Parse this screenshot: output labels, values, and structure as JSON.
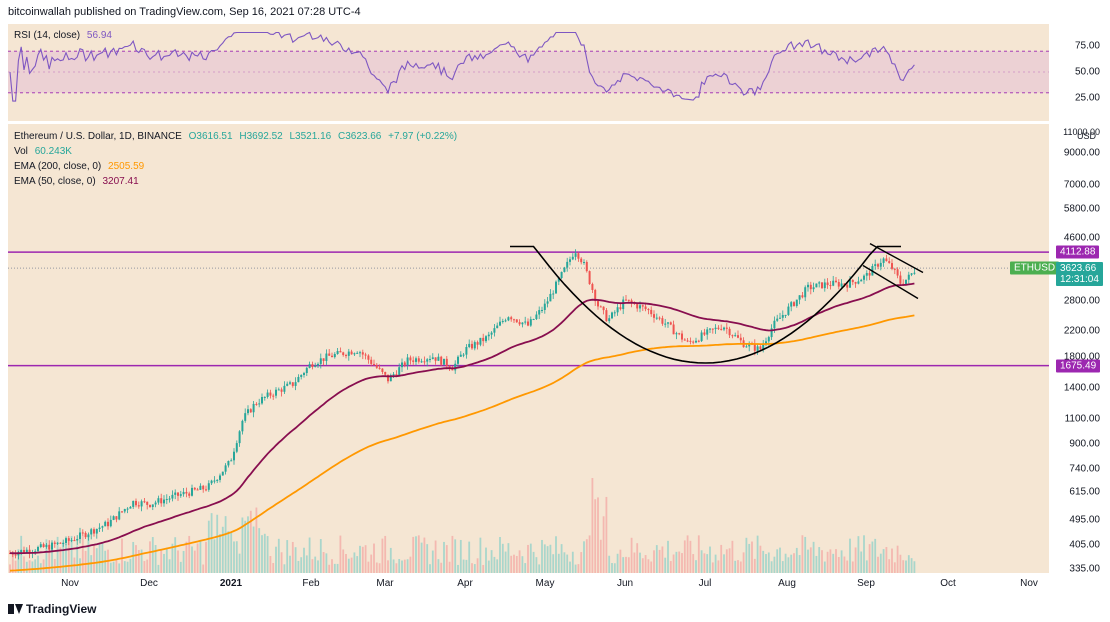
{
  "header": {
    "text": "bitcoinwallah published on TradingView.com, Sep 16, 2021 07:28 UTC-4"
  },
  "rsi": {
    "label": "RSI (14, close)",
    "value": "56.94",
    "ticks": [
      "75.00",
      "50.00",
      "25.00"
    ],
    "tick_values": [
      75,
      50,
      25
    ],
    "band": [
      30,
      70
    ]
  },
  "main": {
    "title": "Ethereum / U.S. Dollar, 1D, BINANCE",
    "ohlc": {
      "o": "O3616.51",
      "h": "H3692.52",
      "l": "L3521.16",
      "c": "C3623.66",
      "chg": "+7.97 (+0.22%)"
    },
    "vol": {
      "label": "Vol",
      "value": "60.243K"
    },
    "ema200": {
      "label": "EMA (200, close, 0)",
      "value": "2505.59"
    },
    "ema50": {
      "label": "EMA (50, close, 0)",
      "value": "3207.41"
    },
    "axis_unit": "USD",
    "axis_top": "11000.00",
    "price_ticks": [
      "9000.00",
      "7000.00",
      "5800.00",
      "4600.00",
      "3600.00",
      "2800.00",
      "2200.00",
      "1800.00",
      "1400.00",
      "1100.00",
      "900.00",
      "740.00",
      "615.00",
      "495.00",
      "405.00",
      "335.00"
    ],
    "price_tick_values": [
      9000,
      7000,
      5800,
      4600,
      3600,
      2800,
      2200,
      1800,
      1400,
      1100,
      900,
      740,
      615,
      495,
      405,
      335
    ],
    "levels": [
      {
        "value": 4112.88,
        "label": "4112.88"
      },
      {
        "value": 1675.49,
        "label": "1675.49"
      }
    ],
    "last_tag": {
      "symbol": "ETHUSD",
      "price": "3623.66",
      "countdown": "12:31:04"
    }
  },
  "xaxis": {
    "labels": [
      "Nov",
      "Dec",
      "2021",
      "Feb",
      "Mar",
      "Apr",
      "May",
      "Jun",
      "Jul",
      "Aug",
      "Sep",
      "Oct",
      "Nov"
    ],
    "bold": [
      "2021"
    ]
  },
  "colors": {
    "pane_bg": "#f5e6d3",
    "up": "#26a69a",
    "down": "#ef5350",
    "ema200": "#ff9800",
    "ema50": "#880e4f",
    "rsi_line": "#7e57c2",
    "rsi_band": "#9c27b0",
    "level": "#9c27b0",
    "tag_green": "#4caf50",
    "tag_up": "#26a69a"
  },
  "footer": {
    "brand": "TradingView"
  },
  "chart_data": {
    "type": "candlestick",
    "title": "Ethereum / U.S. Dollar, 1D, BINANCE",
    "x": [
      "2020-11",
      "2020-12",
      "2021-01",
      "2021-02",
      "2021-03",
      "2021-04",
      "2021-05",
      "2021-06",
      "2021-07",
      "2021-08",
      "2021-09",
      "2021-09-16"
    ],
    "close_approx": [
      480,
      590,
      1300,
      1500,
      1800,
      2100,
      2500,
      2600,
      2000,
      2550,
      3400,
      3623.66
    ],
    "series": [
      {
        "name": "EMA (200, close, 0)",
        "last": 2505.59
      },
      {
        "name": "EMA (50, close, 0)",
        "last": 3207.41
      }
    ],
    "rsi_last": 56.94,
    "horizontal_levels": [
      4112.88,
      1675.49
    ],
    "yscale": "log",
    "ylim": [
      335,
      11000
    ],
    "grid": false
  }
}
